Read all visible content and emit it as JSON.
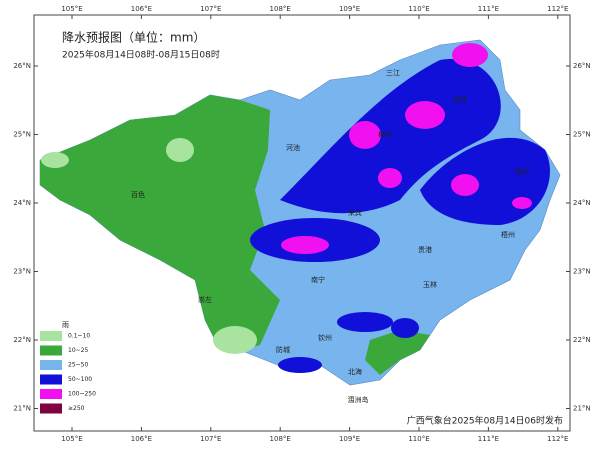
{
  "header": {
    "title": "降水预报图（单位：mm）",
    "subtitle": "2025年08月14日08时-08月15日08时"
  },
  "longitudes": [
    "105°E",
    "106°E",
    "107°E",
    "108°E",
    "109°E",
    "110°E",
    "111°E",
    "112°E"
  ],
  "latitudes": [
    "26°N",
    "25°N",
    "24°N",
    "23°N",
    "22°N",
    "21°N"
  ],
  "legend": {
    "title": "雨",
    "items": [
      {
        "label": "0.1~10",
        "color": "#a8e4a0"
      },
      {
        "label": "10~25",
        "color": "#3aa83a"
      },
      {
        "label": "25~50",
        "color": "#78b4ee"
      },
      {
        "label": "50~100",
        "color": "#1010d8"
      },
      {
        "label": "100~250",
        "color": "#f010f0"
      },
      {
        "label": "≥250",
        "color": "#800040"
      }
    ]
  },
  "cities": [
    "三江",
    "河池",
    "柳州",
    "桂林",
    "贺州",
    "百色",
    "来宾",
    "梧州",
    "南宁",
    "贵港",
    "玉林",
    "崇左",
    "钦州",
    "防城",
    "北海",
    "涠洲岛"
  ],
  "footer": "广西气象台2025年08月14日06时发布"
}
